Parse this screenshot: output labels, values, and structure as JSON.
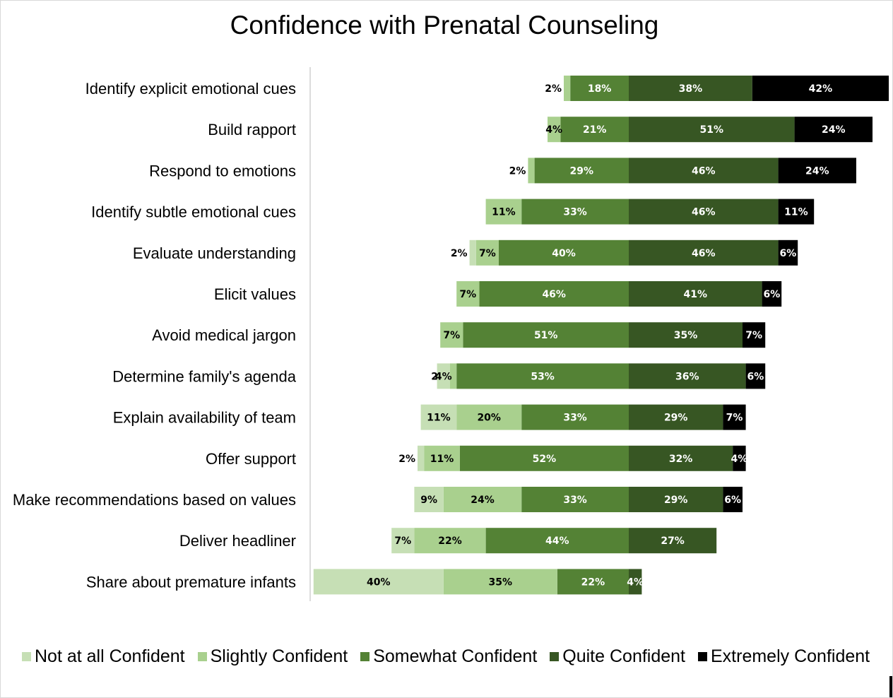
{
  "chart_data": {
    "type": "bar",
    "title": "Confidence with Prenatal Counseling",
    "orientation": "horizontal diverging stacked",
    "categories": [
      "Identify explicit emotional cues",
      "Build rapport",
      "Respond to emotions",
      "Identify subtle emotional cues",
      "Evaluate understanding",
      "Elicit values",
      "Avoid medical jargon",
      "Determine family's agenda",
      "Explain availability of team",
      "Offer support",
      "Make recommendations based on values",
      "Deliver headliner",
      "Share about premature infants"
    ],
    "series": [
      {
        "name": "Not at all Confident",
        "color": "#c6dfb5",
        "values": [
          0,
          0,
          0,
          0,
          2,
          0,
          0,
          4,
          11,
          2,
          9,
          7,
          40
        ]
      },
      {
        "name": "Slightly Confident",
        "color": "#a9d08e",
        "values": [
          2,
          4,
          2,
          11,
          7,
          7,
          7,
          2,
          20,
          11,
          24,
          22,
          35
        ]
      },
      {
        "name": "Somewhat Confident",
        "color": "#548235",
        "values": [
          18,
          21,
          29,
          33,
          40,
          46,
          51,
          53,
          33,
          52,
          33,
          44,
          22
        ]
      },
      {
        "name": "Quite Confident",
        "color": "#375623",
        "values": [
          38,
          51,
          46,
          46,
          46,
          41,
          35,
          36,
          29,
          32,
          29,
          27,
          4
        ]
      },
      {
        "name": "Extremely Confident",
        "color": "#000000",
        "values": [
          42,
          24,
          24,
          11,
          6,
          6,
          7,
          6,
          7,
          4,
          6,
          0,
          0
        ]
      }
    ],
    "label_format": "{v}%",
    "xlabel": "",
    "ylabel": "",
    "legend": "bottom",
    "grid": false
  }
}
